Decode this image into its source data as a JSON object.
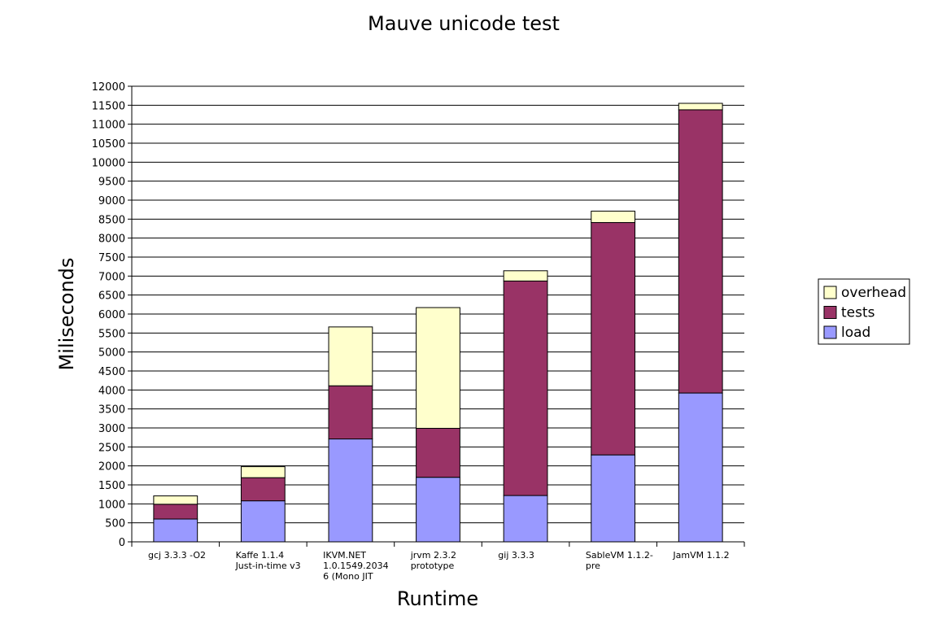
{
  "chart_data": {
    "type": "bar",
    "stacked": true,
    "title": "Mauve unicode test",
    "xlabel": "Runtime",
    "ylabel": "Miliseconds",
    "ylim": [
      0,
      12000
    ],
    "ytick_step": 500,
    "grid": true,
    "legend_position": "right",
    "categories": [
      [
        "gcj 3.3.3 -O2"
      ],
      [
        "Kaffe 1.1.4",
        "Just-in-time v3"
      ],
      [
        "IKVM.NET",
        "1.0.1549.2034",
        "6 (Mono JIT"
      ],
      [
        "jrvm 2.3.2",
        "prototype"
      ],
      [
        "gij 3.3.3"
      ],
      [
        "SableVM 1.1.2-",
        "pre"
      ],
      [
        "JamVM 1.1.2"
      ]
    ],
    "series": [
      {
        "name": "load",
        "color": "#9999ff",
        "values": [
          600,
          1080,
          2710,
          1700,
          1220,
          2290,
          3920
        ]
      },
      {
        "name": "tests",
        "color": "#993366",
        "values": [
          390,
          610,
          1400,
          1290,
          5650,
          6120,
          7460
        ]
      },
      {
        "name": "overhead",
        "color": "#ffffcc",
        "values": [
          220,
          290,
          1550,
          3180,
          270,
          300,
          170
        ]
      }
    ],
    "legend_order": [
      "overhead",
      "tests",
      "load"
    ]
  }
}
